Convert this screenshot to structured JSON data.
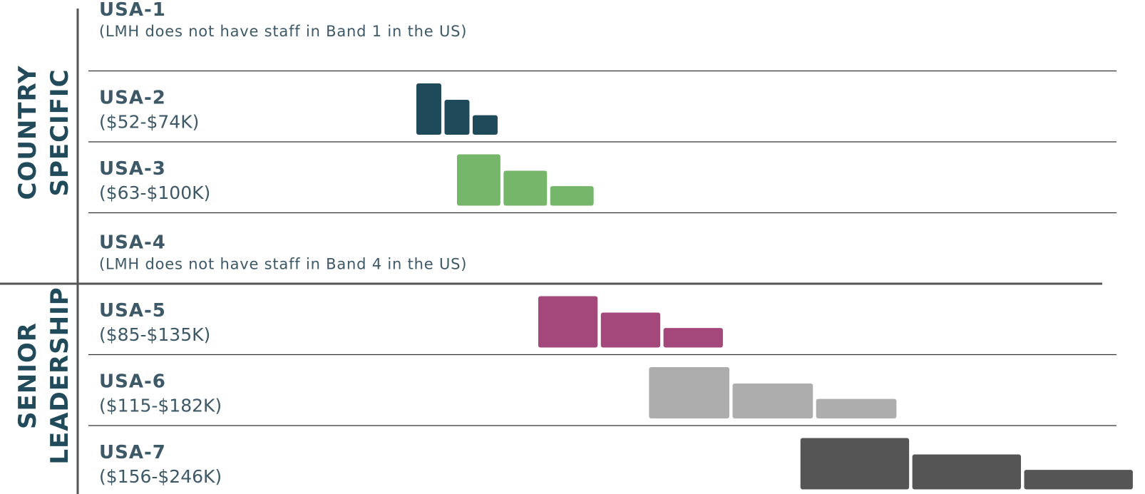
{
  "chart_data": {
    "type": "bar",
    "groups": [
      {
        "label_lines": [
          "COUNTRY",
          "SPECIFIC"
        ],
        "bands": [
          "USA-1",
          "USA-2",
          "USA-3",
          "USA-4"
        ]
      },
      {
        "label_lines": [
          "SENIOR",
          "LEADERSHIP"
        ],
        "bands": [
          "USA-5",
          "USA-6",
          "USA-7"
        ]
      }
    ],
    "bands": [
      {
        "name": "USA-1",
        "subtitle": "(LMH does not have staff in Band 1 in the US)",
        "min": null,
        "max": null,
        "color": null
      },
      {
        "name": "USA-2",
        "subtitle": "($52-$74K)",
        "min": 52,
        "max": 74,
        "color": "#1f4a5a"
      },
      {
        "name": "USA-3",
        "subtitle": "($63-$100K)",
        "min": 63,
        "max": 100,
        "color": "#75b66a"
      },
      {
        "name": "USA-4",
        "subtitle": "(LMH does not have staff in Band 4 in the US)",
        "min": null,
        "max": null,
        "color": null
      },
      {
        "name": "USA-5",
        "subtitle": "($85-$135K)",
        "min": 85,
        "max": 135,
        "color": "#a4477a"
      },
      {
        "name": "USA-6",
        "subtitle": "($115-$182K)",
        "min": 115,
        "max": 182,
        "color": "#adadad"
      },
      {
        "name": "USA-7",
        "subtitle": "($156-$246K)",
        "min": 156,
        "max": 246,
        "color": "#555555"
      }
    ],
    "segments_per_band": 3,
    "segment_relative_heights": [
      1.0,
      0.68,
      0.38
    ],
    "grid": false,
    "legend": "none"
  }
}
